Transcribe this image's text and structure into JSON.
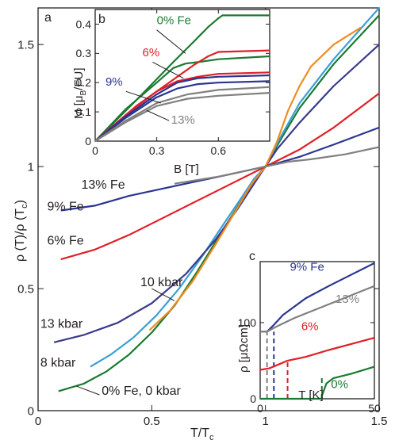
{
  "chart_data": [
    {
      "panel": "a",
      "type": "line",
      "xlabel_main": "T/T",
      "xlabel_sub": "c",
      "ylabel": "ρ (T)/ρ (T",
      "ylabel_sub": "c",
      "ylabel_close": ")",
      "xlim": [
        0,
        1.5
      ],
      "ylim": [
        0,
        1.65
      ],
      "xticks": [
        {
          "value": 0,
          "label": "0"
        },
        {
          "value": 0.5,
          "label": "0.5"
        },
        {
          "value": 1,
          "label": "1"
        },
        {
          "value": 1.5,
          "label": "1.5"
        }
      ],
      "yticks": [
        {
          "value": 0,
          "label": "0"
        },
        {
          "value": 0.5,
          "label": "0.5"
        },
        {
          "value": 1,
          "label": "1"
        },
        {
          "value": 1.5,
          "label": "1.5"
        }
      ],
      "series": [
        {
          "name": "0% Fe, 0 kbar",
          "color": "#1a7a32",
          "points": [
            [
              0.09,
              0.08
            ],
            [
              0.2,
              0.11
            ],
            [
              0.3,
              0.16
            ],
            [
              0.4,
              0.23
            ],
            [
              0.5,
              0.32
            ],
            [
              0.6,
              0.43
            ],
            [
              0.7,
              0.57
            ],
            [
              0.8,
              0.72
            ],
            [
              0.88,
              0.84
            ],
            [
              0.94,
              0.93
            ],
            [
              1.0,
              1.0
            ],
            [
              1.06,
              1.1
            ],
            [
              1.15,
              1.24
            ],
            [
              1.3,
              1.42
            ],
            [
              1.5,
              1.62
            ]
          ]
        },
        {
          "name": "8 kbar",
          "color": "#3a9fd6",
          "points": [
            [
              0.23,
              0.18
            ],
            [
              0.32,
              0.23
            ],
            [
              0.42,
              0.3
            ],
            [
              0.52,
              0.39
            ],
            [
              0.62,
              0.5
            ],
            [
              0.72,
              0.63
            ],
            [
              0.82,
              0.77
            ],
            [
              0.9,
              0.88
            ],
            [
              0.95,
              0.95
            ],
            [
              1.0,
              1.0
            ],
            [
              1.06,
              1.11
            ],
            [
              1.15,
              1.26
            ],
            [
              1.3,
              1.44
            ],
            [
              1.5,
              1.65
            ]
          ]
        },
        {
          "name": "13 kbar",
          "color": "#3a3a8c",
          "points": [
            [
              0.07,
              0.28
            ],
            [
              0.2,
              0.31
            ],
            [
              0.35,
              0.36
            ],
            [
              0.5,
              0.44
            ],
            [
              0.65,
              0.56
            ],
            [
              0.78,
              0.7
            ],
            [
              0.88,
              0.83
            ],
            [
              0.95,
              0.93
            ],
            [
              1.0,
              1.0
            ],
            [
              1.05,
              1.07
            ],
            [
              1.15,
              1.18
            ],
            [
              1.3,
              1.33
            ],
            [
              1.5,
              1.5
            ]
          ]
        },
        {
          "name": "10 kbar",
          "color": "#f08c20",
          "points": [
            [
              0.49,
              0.33
            ],
            [
              0.58,
              0.41
            ],
            [
              0.68,
              0.53
            ],
            [
              0.78,
              0.68
            ],
            [
              0.87,
              0.82
            ],
            [
              0.94,
              0.93
            ],
            [
              1.0,
              1.0
            ],
            [
              1.05,
              1.1
            ],
            [
              1.1,
              1.23
            ],
            [
              1.15,
              1.33
            ],
            [
              1.2,
              1.41
            ],
            [
              1.3,
              1.5
            ],
            [
              1.42,
              1.57
            ]
          ]
        },
        {
          "name": "6% Fe",
          "color": "#e01f26",
          "points": [
            [
              0.1,
              0.62
            ],
            [
              0.25,
              0.66
            ],
            [
              0.4,
              0.72
            ],
            [
              0.55,
              0.79
            ],
            [
              0.7,
              0.86
            ],
            [
              0.85,
              0.93
            ],
            [
              1.0,
              1.0
            ],
            [
              1.15,
              1.07
            ],
            [
              1.3,
              1.16
            ],
            [
              1.5,
              1.3
            ]
          ]
        },
        {
          "name": "9% Fe",
          "color": "#2b3590",
          "points": [
            [
              0.1,
              0.82
            ],
            [
              0.25,
              0.84
            ],
            [
              0.4,
              0.88
            ],
            [
              0.55,
              0.91
            ],
            [
              0.7,
              0.94
            ],
            [
              0.85,
              0.97
            ],
            [
              1.0,
              1.0
            ],
            [
              1.15,
              1.04
            ],
            [
              1.3,
              1.09
            ],
            [
              1.5,
              1.16
            ]
          ]
        },
        {
          "name": "13% Fe",
          "color": "#808080",
          "points": [
            [
              0.6,
              0.93
            ],
            [
              0.7,
              0.945
            ],
            [
              0.8,
              0.96
            ],
            [
              0.9,
              0.98
            ],
            [
              1.0,
              1.0
            ],
            [
              1.1,
              1.02
            ],
            [
              1.2,
              1.03
            ],
            [
              1.35,
              1.05
            ],
            [
              1.5,
              1.08
            ]
          ]
        }
      ],
      "annotations": [
        {
          "text": "13% Fe",
          "x": 0.19,
          "y": 0.91,
          "color": "#231f20"
        },
        {
          "text": "9% Fe",
          "x": 0.04,
          "y": 0.82,
          "color": "#231f20"
        },
        {
          "text": "6% Fe",
          "x": 0.04,
          "y": 0.68,
          "color": "#231f20"
        },
        {
          "text": "10 kbar",
          "x": 0.45,
          "y": 0.51,
          "color": "#231f20"
        },
        {
          "text": "13 kbar",
          "x": 0.01,
          "y": 0.34,
          "color": "#231f20"
        },
        {
          "text": "8 kbar",
          "x": 0.01,
          "y": 0.18,
          "color": "#231f20"
        },
        {
          "text": "0% Fe, 0 kbar",
          "x": 0.28,
          "y": 0.065,
          "color": "#231f20"
        }
      ]
    },
    {
      "panel": "b",
      "type": "line",
      "xlabel": "B [T]",
      "ylabel_main": "M [μ",
      "ylabel_sub": "B",
      "ylabel_close": "/FU]",
      "xlim": [
        0,
        0.85
      ],
      "ylim": [
        0,
        0.45
      ],
      "xticks": [
        {
          "value": 0,
          "label": "0"
        },
        {
          "value": 0.3,
          "label": "0.3"
        },
        {
          "value": 0.6,
          "label": "0.6"
        }
      ],
      "yticks": [
        {
          "value": 0,
          "label": "0"
        },
        {
          "value": 0.1,
          "label": "0.1"
        },
        {
          "value": 0.2,
          "label": "0.2"
        },
        {
          "value": 0.3,
          "label": "0.3"
        },
        {
          "value": 0.4,
          "label": "0.4"
        }
      ],
      "series": [
        {
          "name": "0% Fe",
          "color": "#1a7a32",
          "points": [
            [
              0,
              0
            ],
            [
              0.2,
              0.14
            ],
            [
              0.38,
              0.27
            ],
            [
              0.48,
              0.34
            ],
            [
              0.55,
              0.39
            ],
            [
              0.6,
              0.42
            ],
            [
              0.62,
              0.43
            ],
            [
              0.85,
              0.43
            ]
          ]
        },
        {
          "name": "0% Fe",
          "color": "#1a7a32",
          "points": [
            [
              0,
              0
            ],
            [
              0.15,
              0.11
            ],
            [
              0.3,
              0.2
            ],
            [
              0.38,
              0.25
            ],
            [
              0.44,
              0.265
            ],
            [
              0.5,
              0.27
            ],
            [
              0.6,
              0.28
            ],
            [
              0.85,
              0.29
            ]
          ]
        },
        {
          "name": "6%",
          "color": "#e01f26",
          "points": [
            [
              0,
              0
            ],
            [
              0.2,
              0.12
            ],
            [
              0.38,
              0.21
            ],
            [
              0.48,
              0.26
            ],
            [
              0.55,
              0.29
            ],
            [
              0.6,
              0.305
            ],
            [
              0.85,
              0.31
            ]
          ]
        },
        {
          "name": "6%",
          "color": "#e01f26",
          "points": [
            [
              0,
              0
            ],
            [
              0.15,
              0.09
            ],
            [
              0.3,
              0.17
            ],
            [
              0.4,
              0.205
            ],
            [
              0.5,
              0.22
            ],
            [
              0.6,
              0.23
            ],
            [
              0.85,
              0.235
            ]
          ]
        },
        {
          "name": "9%",
          "color": "#2b3590",
          "points": [
            [
              0,
              0
            ],
            [
              0.15,
              0.085
            ],
            [
              0.3,
              0.16
            ],
            [
              0.4,
              0.2
            ],
            [
              0.5,
              0.215
            ],
            [
              0.6,
              0.22
            ],
            [
              0.85,
              0.225
            ]
          ]
        },
        {
          "name": "9%",
          "color": "#2b3590",
          "points": [
            [
              0,
              0
            ],
            [
              0.15,
              0.08
            ],
            [
              0.3,
              0.15
            ],
            [
              0.4,
              0.18
            ],
            [
              0.5,
              0.195
            ],
            [
              0.6,
              0.2
            ],
            [
              0.85,
              0.205
            ]
          ]
        },
        {
          "name": "13%",
          "color": "#808080",
          "points": [
            [
              0,
              0
            ],
            [
              0.15,
              0.07
            ],
            [
              0.3,
              0.13
            ],
            [
              0.45,
              0.16
            ],
            [
              0.6,
              0.175
            ],
            [
              0.85,
              0.185
            ]
          ]
        },
        {
          "name": "13%",
          "color": "#808080",
          "points": [
            [
              0,
              0
            ],
            [
              0.15,
              0.065
            ],
            [
              0.3,
              0.12
            ],
            [
              0.45,
              0.145
            ],
            [
              0.6,
              0.155
            ],
            [
              0.85,
              0.165
            ]
          ]
        }
      ],
      "annotations": [
        {
          "text": "0% Fe",
          "x": 0.3,
          "y": 0.4,
          "color": "#1a7a32"
        },
        {
          "text": "6%",
          "x": 0.23,
          "y": 0.29,
          "color": "#e01f26"
        },
        {
          "text": "9%",
          "x": 0.05,
          "y": 0.19,
          "color": "#2b3590"
        },
        {
          "text": "13%",
          "x": 0.37,
          "y": 0.06,
          "color": "#808080"
        }
      ]
    },
    {
      "panel": "c",
      "type": "line",
      "xlabel": "T [K]",
      "ylabel_main": "ρ [μΩcm]",
      "xlim": [
        0,
        50
      ],
      "ylim": [
        0,
        180
      ],
      "xticks": [
        {
          "value": 0,
          "label": "0"
        },
        {
          "value": 50,
          "label": "50"
        }
      ],
      "yticks": [
        {
          "value": 0,
          "label": "0"
        },
        {
          "value": 100,
          "label": "100"
        }
      ],
      "series": [
        {
          "name": "9% Fe",
          "color": "#2b3590",
          "points": [
            [
              0,
              88
            ],
            [
              3,
              88
            ],
            [
              6,
              97
            ],
            [
              10,
              110
            ],
            [
              20,
              132
            ],
            [
              30,
              148
            ],
            [
              40,
              163
            ],
            [
              50,
              178
            ]
          ]
        },
        {
          "name": "13%",
          "color": "#808080",
          "points": [
            [
              0,
              88
            ],
            [
              3,
              88
            ],
            [
              8,
              96
            ],
            [
              15,
              106
            ],
            [
              25,
              118
            ],
            [
              35,
              130
            ],
            [
              45,
              142
            ],
            [
              50,
              148
            ]
          ]
        },
        {
          "name": "6%",
          "color": "#e01f26",
          "points": [
            [
              0,
              38
            ],
            [
              4,
              40
            ],
            [
              8,
              45
            ],
            [
              12,
              50
            ],
            [
              20,
              55
            ],
            [
              30,
              64
            ],
            [
              40,
              72
            ],
            [
              50,
              80
            ]
          ]
        },
        {
          "name": "0%",
          "color": "#1a7a32",
          "points": [
            [
              0,
              0
            ],
            [
              10,
              0
            ],
            [
              20,
              0
            ],
            [
              27,
              0
            ],
            [
              27,
              4
            ],
            [
              29,
              20
            ],
            [
              32,
              27
            ],
            [
              40,
              33
            ],
            [
              50,
              42
            ]
          ]
        }
      ],
      "markers": [
        {
          "x": 3,
          "y0": 0,
          "y1": 88,
          "color": "#808080"
        },
        {
          "x": 6,
          "y0": 0,
          "y1": 88,
          "color": "#2b3590"
        },
        {
          "x": 12,
          "y0": 0,
          "y1": 50,
          "color": "#e01f26"
        },
        {
          "x": 27,
          "y0": 0,
          "y1": 28,
          "color": "#1a7a32"
        }
      ],
      "annotations": [
        {
          "text": "9% Fe",
          "x": 13,
          "y": 168,
          "color": "#2b3590"
        },
        {
          "text": "13%",
          "x": 33,
          "y": 126,
          "color": "#808080"
        },
        {
          "text": "6%",
          "x": 18,
          "y": 90,
          "color": "#e01f26"
        },
        {
          "text": "0%",
          "x": 31,
          "y": 14,
          "color": "#1a7a32"
        }
      ]
    }
  ],
  "panel_labels": {
    "a": "a",
    "b": "b",
    "c": "c"
  }
}
